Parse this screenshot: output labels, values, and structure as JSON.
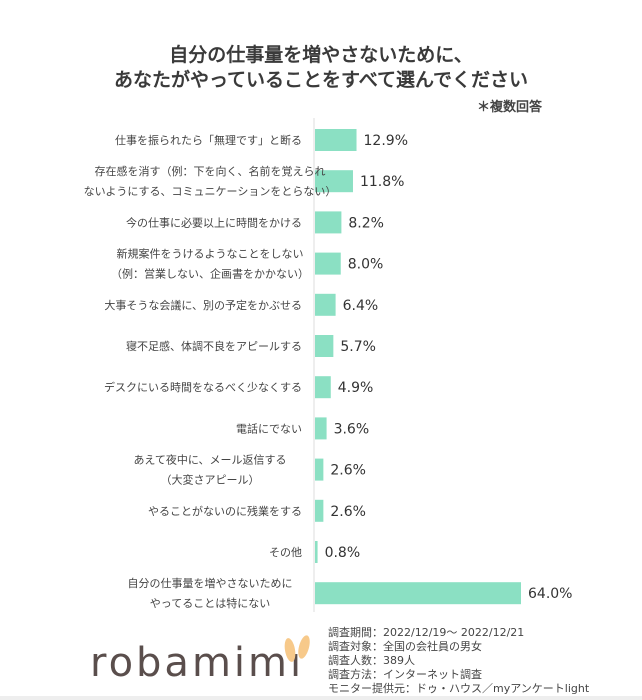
{
  "chart_data": {
    "type": "bar",
    "orientation": "horizontal",
    "title": [
      "自分の仕事量を増やさないために、",
      "あなたがやっていることをすべて選んでください"
    ],
    "note": "＊複数回答",
    "categories": [
      [
        "仕事を振られたら「無理です」と断る"
      ],
      [
        "存在感を消す（例：下を向く、名前を覚えられ",
        "ないようにする、コミュニケーションをとらない）"
      ],
      [
        "今の仕事に必要以上に時間をかける"
      ],
      [
        "新規案件をうけるようなことをしない",
        "（例：営業しない、企画書をかかない）"
      ],
      [
        "大事そうな会議に、別の予定をかぶせる"
      ],
      [
        "寝不足感、体調不良をアピールする"
      ],
      [
        "デスクにいる時間をなるべく少なくする"
      ],
      [
        "電話にでない"
      ],
      [
        "あえて夜中に、メール返信する",
        "（大変さアピール）"
      ],
      [
        "やることがないのに残業をする"
      ],
      [
        "その他"
      ],
      [
        "自分の仕事量を増やさないために",
        "やってることは特にない"
      ]
    ],
    "values": [
      12.9,
      11.8,
      8.2,
      8.0,
      6.4,
      5.7,
      4.9,
      3.6,
      2.6,
      2.6,
      0.8,
      64.0
    ],
    "value_labels": [
      "12.9%",
      "11.8%",
      "8.2%",
      "8.0%",
      "6.4%",
      "5.7%",
      "4.9%",
      "3.6%",
      "2.6%",
      "2.6%",
      "0.8%",
      "64.0%"
    ],
    "unit": "%",
    "xlim": [
      0,
      64
    ],
    "bar_color": "#8be0c3",
    "grid": false
  },
  "footer": {
    "logo": "robamimi",
    "logo_color": "#5a4e4c",
    "ear_color": "#f7c98a",
    "info": [
      "調査期間：2022/12/19～ 2022/12/21",
      "調査対象：全国の会社員の男女",
      "調査人数：389人",
      "調査方法：インターネット調査",
      "モニター提供元：ドゥ・ハウス／myアンケートlight"
    ]
  }
}
